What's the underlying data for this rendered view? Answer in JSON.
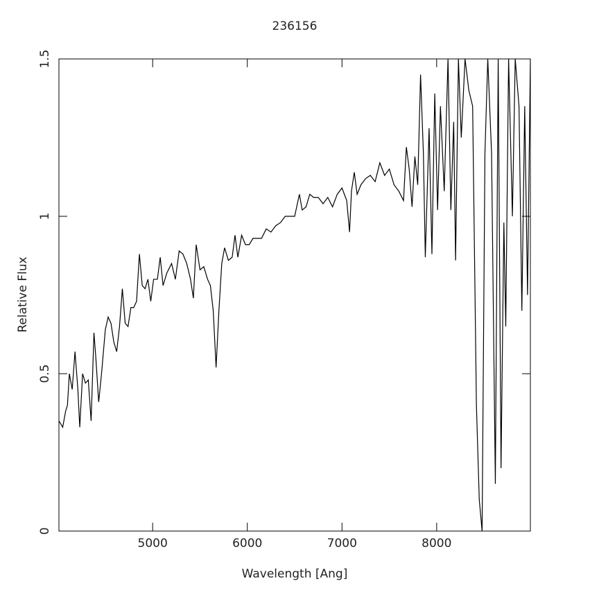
{
  "chart_data": {
    "type": "line",
    "title": "236156",
    "x_label": "Wavelength [Ang]",
    "y_label": "Relative Flux",
    "xlim": [
      4010,
      8990
    ],
    "ylim": [
      0,
      1.5
    ],
    "xticks": [
      5000,
      6000,
      7000,
      8000
    ],
    "yticks": [
      0,
      0.5,
      1,
      1.5
    ],
    "series": [
      {
        "color": "#000000",
        "x": [
          4010,
          4050,
          4080,
          4100,
          4120,
          4150,
          4180,
          4210,
          4230,
          4260,
          4290,
          4320,
          4350,
          4380,
          4400,
          4430,
          4460,
          4500,
          4530,
          4560,
          4590,
          4620,
          4650,
          4680,
          4710,
          4740,
          4770,
          4800,
          4830,
          4860,
          4890,
          4920,
          4950,
          4980,
          5010,
          5050,
          5080,
          5110,
          5150,
          5200,
          5240,
          5280,
          5320,
          5360,
          5400,
          5430,
          5460,
          5500,
          5540,
          5580,
          5610,
          5640,
          5670,
          5700,
          5730,
          5760,
          5800,
          5840,
          5870,
          5900,
          5940,
          5980,
          6020,
          6060,
          6100,
          6150,
          6200,
          6250,
          6300,
          6350,
          6400,
          6450,
          6500,
          6550,
          6580,
          6620,
          6660,
          6700,
          6750,
          6800,
          6850,
          6900,
          6950,
          7000,
          7050,
          7080,
          7100,
          7130,
          7160,
          7200,
          7250,
          7300,
          7350,
          7400,
          7450,
          7500,
          7550,
          7600,
          7650,
          7680,
          7710,
          7740,
          7770,
          7800,
          7830,
          7860,
          7880,
          7920,
          7950,
          7980,
          8010,
          8040,
          8080,
          8120,
          8150,
          8180,
          8200,
          8230,
          8260,
          8300,
          8340,
          8380,
          8420,
          8450,
          8480,
          8510,
          8540,
          8580,
          8620,
          8650,
          8680,
          8710,
          8730,
          8760,
          8800,
          8830,
          8870,
          8900,
          8930,
          8960,
          8990
        ],
        "values": [
          0.35,
          0.33,
          0.38,
          0.4,
          0.5,
          0.45,
          0.57,
          0.45,
          0.33,
          0.5,
          0.47,
          0.48,
          0.35,
          0.63,
          0.55,
          0.41,
          0.5,
          0.64,
          0.68,
          0.66,
          0.6,
          0.57,
          0.65,
          0.77,
          0.66,
          0.65,
          0.71,
          0.71,
          0.73,
          0.88,
          0.78,
          0.77,
          0.8,
          0.73,
          0.8,
          0.8,
          0.87,
          0.78,
          0.82,
          0.85,
          0.8,
          0.89,
          0.88,
          0.85,
          0.8,
          0.74,
          0.91,
          0.83,
          0.84,
          0.8,
          0.78,
          0.7,
          0.52,
          0.7,
          0.85,
          0.9,
          0.86,
          0.87,
          0.94,
          0.87,
          0.94,
          0.91,
          0.91,
          0.93,
          0.93,
          0.93,
          0.96,
          0.95,
          0.97,
          0.98,
          1.0,
          1.0,
          1.0,
          1.07,
          1.02,
          1.03,
          1.07,
          1.06,
          1.06,
          1.04,
          1.06,
          1.03,
          1.07,
          1.09,
          1.05,
          0.95,
          1.08,
          1.14,
          1.07,
          1.1,
          1.12,
          1.13,
          1.11,
          1.17,
          1.13,
          1.15,
          1.1,
          1.08,
          1.05,
          1.22,
          1.15,
          1.03,
          1.19,
          1.1,
          1.45,
          1.2,
          0.87,
          1.28,
          0.88,
          1.39,
          1.02,
          1.35,
          1.08,
          1.5,
          1.02,
          1.3,
          0.86,
          1.5,
          1.25,
          1.5,
          1.4,
          1.35,
          0.4,
          0.1,
          0.0,
          1.2,
          1.5,
          1.2,
          0.15,
          1.5,
          0.2,
          0.98,
          0.65,
          1.5,
          1.0,
          1.5,
          1.35,
          0.7,
          1.35,
          0.75,
          1.5
        ]
      }
    ]
  }
}
